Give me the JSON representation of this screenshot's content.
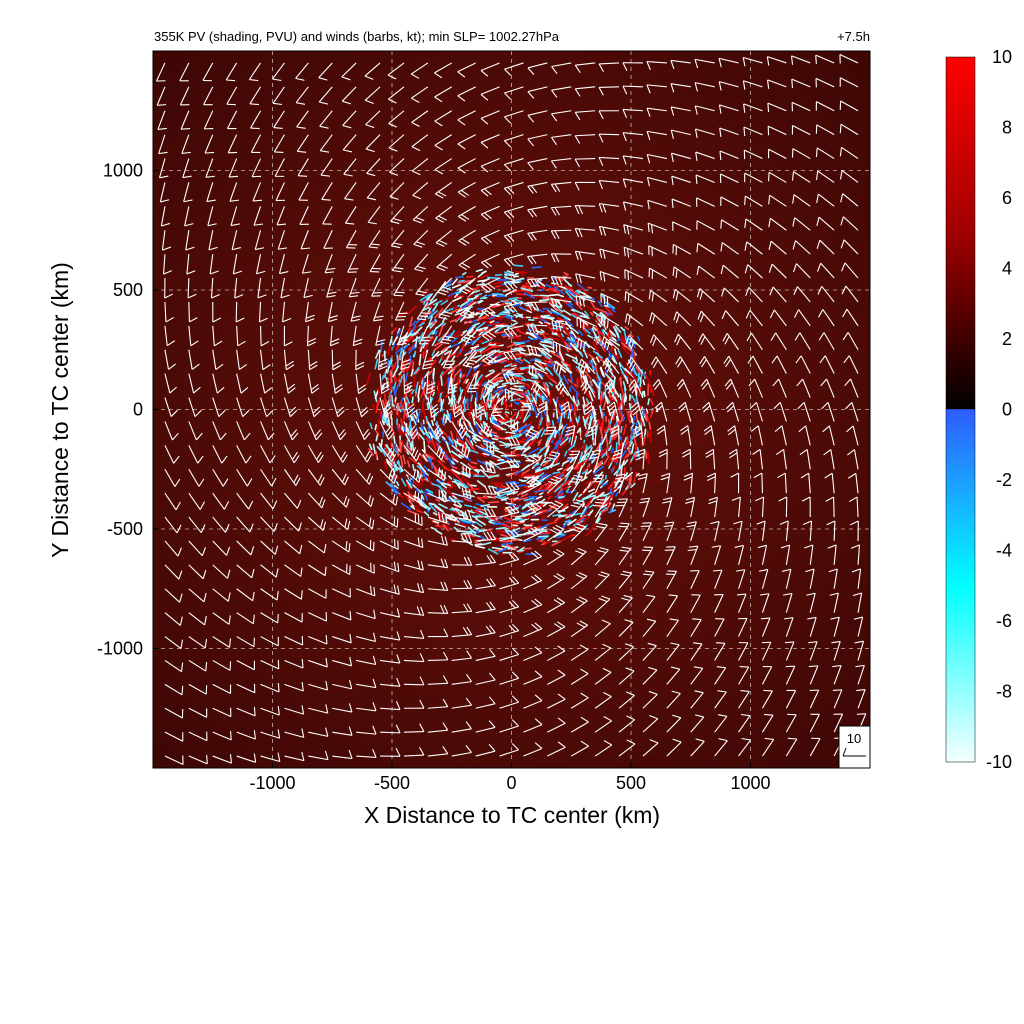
{
  "chart_data": {
    "type": "heatmap",
    "title": "355K PV (shading, PVU) and winds (barbs, kt); min SLP= 1002.27hPa",
    "time_label": "+7.5h",
    "xlabel": "X Distance to TC center (km)",
    "ylabel": "Y Distance to TC center (km)",
    "xlim": [
      -1500,
      1500
    ],
    "ylim": [
      -1500,
      1500
    ],
    "xticks": [
      -1000,
      -500,
      0,
      500,
      1000
    ],
    "yticks": [
      -1000,
      -500,
      0,
      500,
      1000
    ],
    "grid": true,
    "colorbar": {
      "min": -10,
      "max": 10,
      "ticks": [
        10,
        8,
        6,
        4,
        2,
        0,
        -2,
        -4,
        -6,
        -8,
        -10
      ],
      "colors_positive": [
        "#000000",
        "#3a0000",
        "#8a0000",
        "#d40000",
        "#ff0000"
      ],
      "colors_negative": [
        "#2f5cff",
        "#1aa0ff",
        "#00ffff",
        "#a8f5ff",
        "#f4ffff"
      ]
    },
    "field": {
      "background_pv": 1.7,
      "disturbed_region_radius_km": 600,
      "disturbed_pv_range": [
        -10,
        10
      ]
    },
    "wind_barbs": {
      "spacing_km": 100,
      "reference_speed_kt": 10,
      "reference_label": "10"
    },
    "colors": {
      "background": "#5a0d08",
      "grid": "#c9b7b0",
      "barb": "#ffffff"
    }
  }
}
